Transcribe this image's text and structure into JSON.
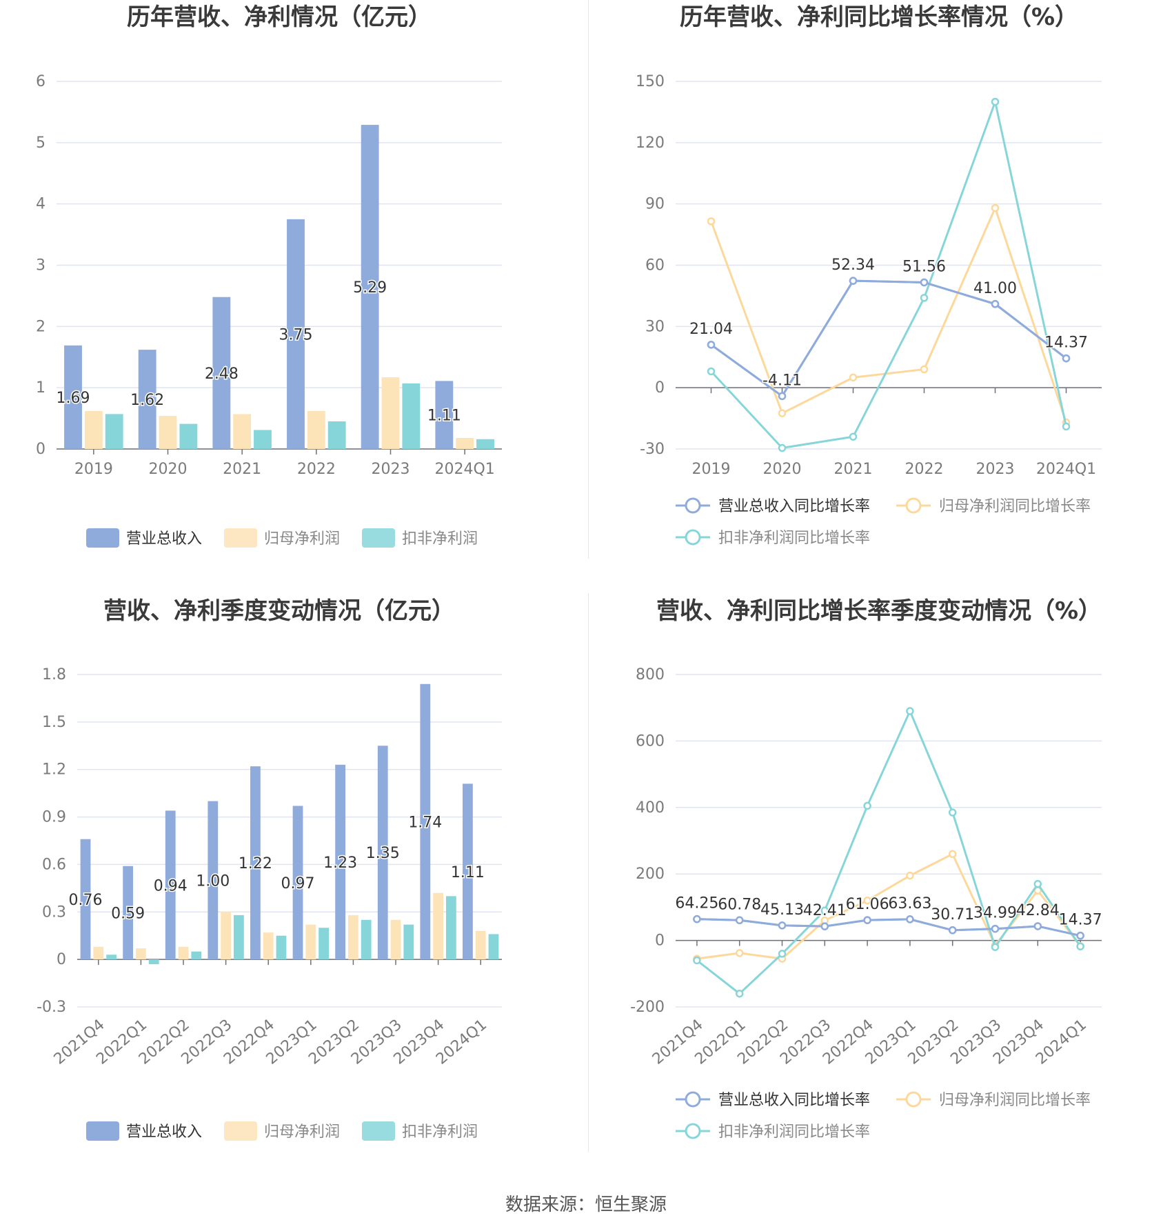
{
  "colors": {
    "revenue": "#8eabdc",
    "net_profit": "#fde3b8",
    "deducted_profit": "#86d6d9",
    "revenue_line": "#8eabdc",
    "net_profit_line": "#fdd89a",
    "deducted_line": "#86d6d9",
    "grid": "#e0e4f0",
    "axis_text": "#7a7a7a",
    "title_text": "#3a3a3a"
  },
  "chart_data": [
    {
      "id": "annual-amount",
      "type": "bar",
      "title": "历年营收、净利情况（亿元）",
      "categories": [
        "2019",
        "2020",
        "2021",
        "2022",
        "2023",
        "2024Q1"
      ],
      "series": [
        {
          "name": "营业总收入",
          "values": [
            1.69,
            1.62,
            2.48,
            3.75,
            5.29,
            1.11
          ]
        },
        {
          "name": "归母净利润",
          "values": [
            0.62,
            0.54,
            0.57,
            0.62,
            1.17,
            0.18
          ]
        },
        {
          "name": "扣非净利润",
          "values": [
            0.57,
            0.41,
            0.31,
            0.45,
            1.07,
            0.16
          ]
        }
      ],
      "data_labels": [
        "1.69",
        "1.62",
        "2.48",
        "3.75",
        "5.29",
        "1.11"
      ],
      "y_ticks": [
        "0",
        "1",
        "2",
        "3",
        "4",
        "5",
        "6"
      ],
      "ylim": [
        0,
        6
      ],
      "grid": true,
      "legend": "bottom"
    },
    {
      "id": "annual-growth",
      "type": "line",
      "title": "历年营收、净利同比增长率情况（%）",
      "categories": [
        "2019",
        "2020",
        "2021",
        "2022",
        "2023",
        "2024Q1"
      ],
      "series": [
        {
          "name": "营业总收入同比增长率",
          "values": [
            21.04,
            -4.11,
            52.34,
            51.56,
            41.0,
            14.37
          ]
        },
        {
          "name": "归母净利润同比增长率",
          "values": [
            81.5,
            -12.5,
            5.0,
            9.0,
            88.0,
            -17.0
          ]
        },
        {
          "name": "扣非净利润同比增长率",
          "values": [
            8.0,
            -29.5,
            -24.0,
            44.0,
            140.0,
            -19.0
          ]
        }
      ],
      "data_labels": [
        "21.04",
        "-4.11",
        "52.34",
        "51.56",
        "41.00",
        "14.37"
      ],
      "y_ticks": [
        "-30",
        "0",
        "30",
        "60",
        "90",
        "120",
        "150"
      ],
      "ylim": [
        -30,
        150
      ],
      "grid": true,
      "legend": "bottom"
    },
    {
      "id": "quarterly-amount",
      "type": "bar",
      "title": "营收、净利季度变动情况（亿元）",
      "categories": [
        "2021Q4",
        "2022Q1",
        "2022Q2",
        "2022Q3",
        "2022Q4",
        "2023Q1",
        "2023Q2",
        "2023Q3",
        "2023Q4",
        "2024Q1"
      ],
      "series": [
        {
          "name": "营业总收入",
          "values": [
            0.76,
            0.59,
            0.94,
            1.0,
            1.22,
            0.97,
            1.23,
            1.35,
            1.74,
            1.11
          ]
        },
        {
          "name": "归母净利润",
          "values": [
            0.08,
            0.07,
            0.08,
            0.3,
            0.17,
            0.22,
            0.28,
            0.25,
            0.42,
            0.18
          ]
        },
        {
          "name": "扣非净利润",
          "values": [
            0.03,
            -0.03,
            0.05,
            0.28,
            0.15,
            0.2,
            0.25,
            0.22,
            0.4,
            0.16
          ]
        }
      ],
      "data_labels": [
        "0.76",
        "0.59",
        "0.94",
        "1.00",
        "1.22",
        "0.97",
        "1.23",
        "1.35",
        "1.74",
        "1.11"
      ],
      "y_ticks": [
        "-0.3",
        "0",
        "0.3",
        "0.6",
        "0.9",
        "1.2",
        "1.5",
        "1.8"
      ],
      "ylim": [
        -0.3,
        1.8
      ],
      "grid": true,
      "legend": "bottom"
    },
    {
      "id": "quarterly-growth",
      "type": "line",
      "title": "营收、净利同比增长率季度变动情况（%）",
      "categories": [
        "2021Q4",
        "2022Q1",
        "2022Q2",
        "2022Q3",
        "2022Q4",
        "2023Q1",
        "2023Q2",
        "2023Q3",
        "2023Q4",
        "2024Q1"
      ],
      "series": [
        {
          "name": "营业总收入同比增长率",
          "values": [
            64.25,
            60.78,
            45.13,
            42.41,
            61.06,
            63.63,
            30.71,
            34.99,
            42.84,
            14.37
          ]
        },
        {
          "name": "归母净利润同比增长率",
          "values": [
            -55.0,
            -38.0,
            -55.0,
            60.0,
            120.0,
            195.0,
            260.0,
            -15.0,
            150.0,
            -17.0
          ]
        },
        {
          "name": "扣非净利润同比增长率",
          "values": [
            -60.0,
            -160.0,
            -40.0,
            90.0,
            405.0,
            690.0,
            385.0,
            -20.0,
            170.0,
            -18.0
          ]
        }
      ],
      "data_labels": [
        "64.25",
        "60.78",
        "45.13",
        "42.41",
        "61.06",
        "63.63",
        "30.71",
        "34.99",
        "42.84",
        "14.37"
      ],
      "y_ticks": [
        "-200",
        "0",
        "200",
        "400",
        "600",
        "800"
      ],
      "ylim": [
        -200,
        800
      ],
      "grid": true,
      "legend": "bottom"
    }
  ],
  "legend_labels": {
    "bar": [
      "营业总收入",
      "归母净利润",
      "扣非净利润"
    ],
    "line": [
      "营业总收入同比增长率",
      "归母净利润同比增长率",
      "扣非净利润同比增长率"
    ]
  },
  "footer": {
    "source": "数据来源：恒生聚源"
  }
}
